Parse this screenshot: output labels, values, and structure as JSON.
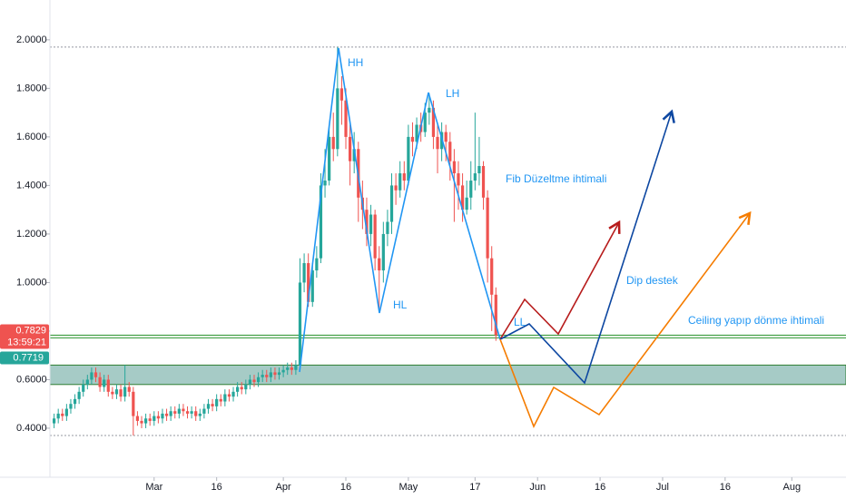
{
  "chart_data": {
    "type": "candlestick",
    "x": [
      "02-05",
      "02-06",
      "02-07",
      "02-08",
      "02-09",
      "02-10",
      "02-11",
      "02-12",
      "02-13",
      "02-14",
      "02-15",
      "02-16",
      "02-17",
      "02-18",
      "02-19",
      "02-20",
      "02-21",
      "02-22",
      "02-23",
      "02-24",
      "02-25",
      "02-26",
      "02-27",
      "02-28",
      "03-01",
      "03-02",
      "03-03",
      "03-04",
      "03-05",
      "03-06",
      "03-07",
      "03-08",
      "03-09",
      "03-10",
      "03-11",
      "03-12",
      "03-13",
      "03-14",
      "03-15",
      "03-16",
      "03-17",
      "03-18",
      "03-19",
      "03-20",
      "03-21",
      "03-22",
      "03-23",
      "03-24",
      "03-25",
      "03-26",
      "03-27",
      "03-28",
      "03-29",
      "03-30",
      "03-31",
      "04-01",
      "04-02",
      "04-03",
      "04-04",
      "04-05",
      "04-06",
      "04-07",
      "04-08",
      "04-09",
      "04-10",
      "04-11",
      "04-12",
      "04-13",
      "04-14",
      "04-15",
      "04-16",
      "04-17",
      "04-18",
      "04-19",
      "04-20",
      "04-21",
      "04-22",
      "04-23",
      "04-24",
      "04-25",
      "04-26",
      "04-27",
      "04-28",
      "04-29",
      "04-30",
      "05-01",
      "05-02",
      "05-03",
      "05-04",
      "05-05",
      "05-06",
      "05-07",
      "05-08",
      "05-09",
      "05-10",
      "05-11",
      "05-12",
      "05-13",
      "05-14",
      "05-15",
      "05-16",
      "05-17",
      "05-18",
      "05-19",
      "05-20",
      "05-21",
      "05-22"
    ],
    "open": [
      0.42,
      0.44,
      0.46,
      0.45,
      0.48,
      0.5,
      0.52,
      0.55,
      0.58,
      0.6,
      0.63,
      0.61,
      0.57,
      0.6,
      0.55,
      0.54,
      0.56,
      0.53,
      0.57,
      0.55,
      0.45,
      0.43,
      0.42,
      0.44,
      0.43,
      0.45,
      0.44,
      0.46,
      0.45,
      0.47,
      0.46,
      0.48,
      0.47,
      0.46,
      0.47,
      0.45,
      0.46,
      0.48,
      0.5,
      0.49,
      0.52,
      0.51,
      0.54,
      0.53,
      0.55,
      0.57,
      0.56,
      0.58,
      0.6,
      0.59,
      0.61,
      0.62,
      0.61,
      0.63,
      0.62,
      0.63,
      0.64,
      0.65,
      0.64,
      0.66,
      1.0,
      1.08,
      0.92,
      1.05,
      1.1,
      1.4,
      1.42,
      1.6,
      1.55,
      1.8,
      1.75,
      1.6,
      1.5,
      1.55,
      1.35,
      1.3,
      1.2,
      1.28,
      1.1,
      1.05,
      1.2,
      1.25,
      1.4,
      1.38,
      1.45,
      1.42,
      1.6,
      1.58,
      1.65,
      1.62,
      1.7,
      1.72,
      1.6,
      1.55,
      1.62,
      1.58,
      1.5,
      1.45,
      1.4,
      1.3,
      1.35,
      1.42,
      1.45,
      1.48,
      1.35,
      1.1,
      0.95
    ],
    "high": [
      0.46,
      0.48,
      0.48,
      0.5,
      0.52,
      0.54,
      0.57,
      0.6,
      0.62,
      0.65,
      0.65,
      0.63,
      0.62,
      0.62,
      0.57,
      0.58,
      0.58,
      0.66,
      0.59,
      0.57,
      0.47,
      0.45,
      0.46,
      0.46,
      0.47,
      0.47,
      0.48,
      0.48,
      0.49,
      0.49,
      0.5,
      0.5,
      0.49,
      0.49,
      0.49,
      0.48,
      0.5,
      0.52,
      0.52,
      0.54,
      0.54,
      0.56,
      0.56,
      0.57,
      0.59,
      0.59,
      0.6,
      0.62,
      0.62,
      0.63,
      0.64,
      0.64,
      0.65,
      0.65,
      0.65,
      0.66,
      0.67,
      0.67,
      0.68,
      1.1,
      1.12,
      1.12,
      1.08,
      1.15,
      1.45,
      1.55,
      1.65,
      1.7,
      1.97,
      1.85,
      1.8,
      1.65,
      1.62,
      1.58,
      1.42,
      1.35,
      1.32,
      1.3,
      1.15,
      1.25,
      1.3,
      1.45,
      1.45,
      1.5,
      1.5,
      1.65,
      1.66,
      1.68,
      1.7,
      1.74,
      1.78,
      1.75,
      1.65,
      1.66,
      1.65,
      1.62,
      1.55,
      1.5,
      1.45,
      1.42,
      1.5,
      1.7,
      1.6,
      1.5,
      1.38,
      1.15,
      0.98
    ],
    "low": [
      0.4,
      0.42,
      0.43,
      0.43,
      0.46,
      0.48,
      0.5,
      0.53,
      0.56,
      0.58,
      0.59,
      0.55,
      0.55,
      0.53,
      0.52,
      0.52,
      0.51,
      0.51,
      0.53,
      0.37,
      0.41,
      0.4,
      0.4,
      0.41,
      0.41,
      0.42,
      0.42,
      0.43,
      0.43,
      0.44,
      0.44,
      0.45,
      0.44,
      0.44,
      0.43,
      0.43,
      0.44,
      0.46,
      0.47,
      0.47,
      0.49,
      0.49,
      0.51,
      0.51,
      0.53,
      0.54,
      0.54,
      0.56,
      0.57,
      0.57,
      0.59,
      0.59,
      0.59,
      0.6,
      0.6,
      0.61,
      0.62,
      0.62,
      0.62,
      0.64,
      0.96,
      0.9,
      0.9,
      1.02,
      1.08,
      1.35,
      1.4,
      1.5,
      1.52,
      1.65,
      1.55,
      1.4,
      1.45,
      1.25,
      1.22,
      1.15,
      1.15,
      1.05,
      0.88,
      1.0,
      1.15,
      1.2,
      1.32,
      1.35,
      1.38,
      1.4,
      1.52,
      1.55,
      1.58,
      1.6,
      1.65,
      1.55,
      1.45,
      1.5,
      1.5,
      1.42,
      1.25,
      1.3,
      1.25,
      1.28,
      1.3,
      1.38,
      1.4,
      1.3,
      1.0,
      0.8,
      0.76
    ],
    "close": [
      0.44,
      0.46,
      0.45,
      0.48,
      0.5,
      0.52,
      0.55,
      0.58,
      0.6,
      0.63,
      0.61,
      0.57,
      0.6,
      0.55,
      0.54,
      0.56,
      0.53,
      0.57,
      0.55,
      0.45,
      0.43,
      0.42,
      0.44,
      0.43,
      0.45,
      0.44,
      0.46,
      0.45,
      0.47,
      0.46,
      0.48,
      0.47,
      0.46,
      0.47,
      0.45,
      0.46,
      0.48,
      0.5,
      0.49,
      0.52,
      0.51,
      0.54,
      0.53,
      0.55,
      0.57,
      0.56,
      0.58,
      0.6,
      0.59,
      0.61,
      0.62,
      0.61,
      0.63,
      0.62,
      0.63,
      0.64,
      0.65,
      0.64,
      0.66,
      1.0,
      1.08,
      0.92,
      1.05,
      1.1,
      1.4,
      1.42,
      1.6,
      1.55,
      1.8,
      1.75,
      1.6,
      1.5,
      1.55,
      1.35,
      1.3,
      1.2,
      1.28,
      1.1,
      1.05,
      1.2,
      1.25,
      1.4,
      1.38,
      1.45,
      1.42,
      1.6,
      1.58,
      1.65,
      1.62,
      1.7,
      1.72,
      1.6,
      1.55,
      1.62,
      1.58,
      1.5,
      1.45,
      1.4,
      1.3,
      1.35,
      1.42,
      1.45,
      1.48,
      1.35,
      1.1,
      0.95,
      0.7829
    ],
    "up_color": "#26a69a",
    "down_color": "#ef5350",
    "xlim": [
      "02-04",
      "08-14"
    ],
    "xticks": [
      {
        "value": "03-01",
        "label": "Mar"
      },
      {
        "value": "03-16",
        "label": "16"
      },
      {
        "value": "04-01",
        "label": "Apr"
      },
      {
        "value": "04-16",
        "label": "16"
      },
      {
        "value": "05-01",
        "label": "May"
      },
      {
        "value": "05-17",
        "label": "17"
      },
      {
        "value": "06-01",
        "label": "Jun"
      },
      {
        "value": "06-16",
        "label": "16"
      },
      {
        "value": "07-01",
        "label": "Jul"
      },
      {
        "value": "07-16",
        "label": "16"
      },
      {
        "value": "08-01",
        "label": "Aug"
      }
    ],
    "ylim": [
      0.198,
      2.164
    ],
    "yticks": [
      {
        "value": 0.4,
        "label": "0.4000"
      },
      {
        "value": 0.6,
        "label": "0.6000"
      },
      {
        "value": 0.8,
        "label": "0.8000"
      },
      {
        "value": 1,
        "label": "1.0000"
      },
      {
        "value": 1.2,
        "label": "1.2000"
      },
      {
        "value": 1.4,
        "label": "1.4000"
      },
      {
        "value": 1.6,
        "label": "1.6000"
      },
      {
        "value": 1.8,
        "label": "1.8000"
      },
      {
        "value": 2,
        "label": "2.0000"
      }
    ],
    "price_labels": [
      {
        "value": 0.7829,
        "label": "0.7829",
        "color": "#ef5350"
      },
      {
        "value": 0.7719,
        "label": "0.7719",
        "color": "#26a69a"
      }
    ],
    "countdown": "13:59:21",
    "support_zone": [
      0.58,
      0.66
    ],
    "dotted_levels": [
      1.97,
      0.37
    ],
    "annotations": [
      "HH",
      "LH",
      "HL",
      "LL",
      "Fib Düzeltme ihtimali",
      "Dip destek",
      "Ceiling yapıp dönme ihtimali"
    ]
  }
}
